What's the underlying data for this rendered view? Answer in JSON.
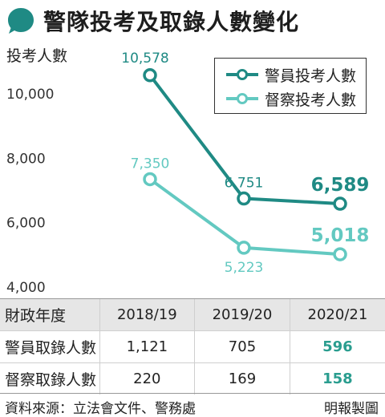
{
  "title": "警隊投考及取錄人數變化",
  "colors": {
    "series1": "#1f8a84",
    "series2": "#63c9c1",
    "header_bubble": "#1f8a84",
    "highlight": "#2a9d8f"
  },
  "chart_data": {
    "type": "line",
    "ylabel": "投考人數",
    "ylim": [
      4000,
      11000
    ],
    "yticks": [
      4000,
      6000,
      8000,
      10000
    ],
    "ytick_labels": [
      "4,000",
      "6,000",
      "8,000",
      "10,000"
    ],
    "categories": [
      "2018/19",
      "2019/20",
      "2020/21"
    ],
    "series": [
      {
        "name": "警員投考人數",
        "values": [
          10578,
          6751,
          6589
        ],
        "labels": [
          "10,578",
          "6,751",
          "6,589"
        ]
      },
      {
        "name": "督察投考人數",
        "values": [
          7350,
          5223,
          5018
        ],
        "labels": [
          "7,350",
          "5,223",
          "5,018"
        ]
      }
    ],
    "legend_position": "top-right",
    "grid": false
  },
  "table": {
    "header": [
      "財政年度",
      "2018/19",
      "2019/20",
      "2020/21"
    ],
    "rows": [
      {
        "label": "警員取錄人數",
        "values": [
          "1,121",
          "705",
          "596"
        ]
      },
      {
        "label": "督察取錄人數",
        "values": [
          "220",
          "169",
          "158"
        ]
      }
    ]
  },
  "footer": {
    "source": "資料來源：立法會文件、警務處",
    "credit": "明報製圖"
  }
}
